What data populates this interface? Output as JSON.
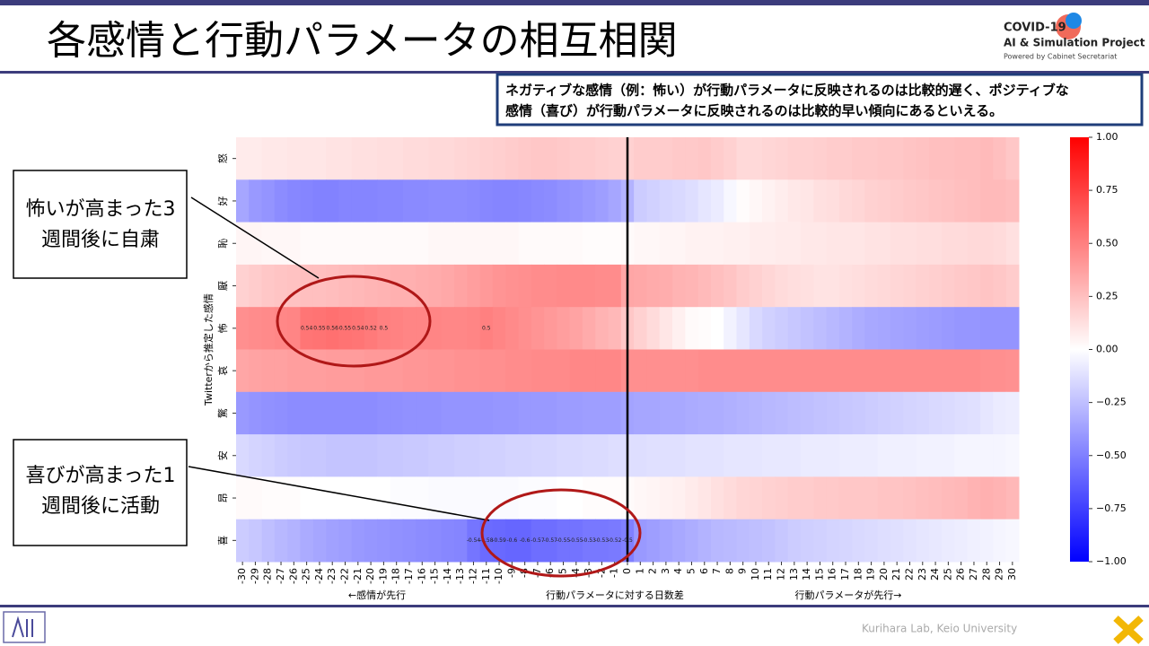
{
  "slide": {
    "title": "各感情と行動パラメータの相互相関",
    "logo": {
      "line1": "COVID-19",
      "line2": "AI & Simulation Project",
      "line3": "Powered by Cabinet Secretariat"
    },
    "note": [
      "ネガティブな感情（例：怖い）が行動パラメータに反映されるのは比較的遅く、ポジティブな",
      "感情（喜び）が行動パラメータに反映されるのは比較的早い傾向にあるといえる。"
    ],
    "callouts": [
      {
        "lines": [
          "怖いが高まった3",
          "週間後に自粛"
        ]
      },
      {
        "lines": [
          "喜びが高まった1",
          "週間後に活動"
        ]
      }
    ],
    "footer": "Kurihara Lab, Keio University"
  },
  "chart_data": {
    "type": "heatmap",
    "colormap": "bwr",
    "ylabel": "Twitterから推定した感情",
    "xlabel": "行動パラメータに対する日数差",
    "xlabel_left": "←感情が先行",
    "xlabel_right": "行動パラメータが先行→",
    "categories": [
      "怒",
      "好",
      "恥",
      "厭",
      "怖",
      "哀",
      "驚",
      "安",
      "昂",
      "喜"
    ],
    "x": [
      -30,
      -29,
      -28,
      -27,
      -26,
      -25,
      -24,
      -23,
      -22,
      -21,
      -20,
      -19,
      -18,
      -17,
      -16,
      -15,
      -14,
      -13,
      -12,
      -11,
      -10,
      -9,
      -8,
      -7,
      -6,
      -5,
      -4,
      -3,
      -2,
      -1,
      0,
      1,
      2,
      3,
      4,
      5,
      6,
      7,
      8,
      9,
      10,
      11,
      12,
      13,
      14,
      15,
      16,
      17,
      18,
      19,
      20,
      21,
      22,
      23,
      24,
      25,
      26,
      27,
      28,
      29,
      30
    ],
    "values": [
      [
        0.08,
        0.08,
        0.09,
        0.09,
        0.1,
        0.1,
        0.1,
        0.11,
        0.11,
        0.12,
        0.12,
        0.13,
        0.13,
        0.14,
        0.14,
        0.15,
        0.15,
        0.16,
        0.17,
        0.18,
        0.19,
        0.2,
        0.21,
        0.22,
        0.22,
        0.21,
        0.2,
        0.2,
        0.19,
        0.18,
        0.18,
        0.2,
        0.2,
        0.2,
        0.21,
        0.21,
        0.22,
        0.2,
        0.18,
        0.15,
        0.15,
        0.16,
        0.17,
        0.18,
        0.18,
        0.19,
        0.2,
        0.2,
        0.21,
        0.21,
        0.22,
        0.22,
        0.23,
        0.24,
        0.25,
        0.25,
        0.26,
        0.26,
        0.27,
        0.25,
        0.22
      ],
      [
        -0.35,
        -0.4,
        -0.42,
        -0.45,
        -0.47,
        -0.48,
        -0.49,
        -0.49,
        -0.48,
        -0.48,
        -0.48,
        -0.47,
        -0.47,
        -0.46,
        -0.46,
        -0.45,
        -0.45,
        -0.45,
        -0.46,
        -0.47,
        -0.48,
        -0.48,
        -0.47,
        -0.46,
        -0.45,
        -0.43,
        -0.42,
        -0.4,
        -0.38,
        -0.35,
        -0.3,
        -0.2,
        -0.18,
        -0.16,
        -0.15,
        -0.13,
        -0.1,
        -0.08,
        -0.03,
        0.01,
        0.03,
        0.05,
        0.07,
        0.09,
        0.1,
        0.12,
        0.13,
        0.15,
        0.16,
        0.18,
        0.19,
        0.2,
        0.21,
        0.22,
        0.23,
        0.24,
        0.25,
        0.26,
        0.27,
        0.27,
        0.26
      ],
      [
        0.04,
        0.04,
        0.03,
        0.03,
        0.03,
        0.02,
        0.02,
        0.02,
        0.02,
        0.02,
        0.02,
        0.02,
        0.02,
        0.02,
        0.02,
        0.03,
        0.03,
        0.03,
        0.03,
        0.03,
        0.03,
        0.03,
        0.02,
        0.02,
        0.02,
        0.02,
        0.02,
        0.01,
        0.01,
        0.01,
        0.02,
        0.03,
        0.03,
        0.04,
        0.04,
        0.05,
        0.05,
        0.05,
        0.06,
        0.06,
        0.07,
        0.07,
        0.08,
        0.08,
        0.09,
        0.09,
        0.1,
        0.1,
        0.1,
        0.11,
        0.11,
        0.12,
        0.12,
        0.13,
        0.13,
        0.14,
        0.14,
        0.15,
        0.15,
        0.14,
        0.12
      ],
      [
        0.18,
        0.2,
        0.22,
        0.23,
        0.24,
        0.25,
        0.25,
        0.26,
        0.27,
        0.28,
        0.29,
        0.3,
        0.31,
        0.31,
        0.32,
        0.33,
        0.34,
        0.36,
        0.38,
        0.4,
        0.42,
        0.43,
        0.44,
        0.45,
        0.45,
        0.46,
        0.46,
        0.46,
        0.45,
        0.45,
        0.35,
        0.34,
        0.33,
        0.32,
        0.3,
        0.29,
        0.27,
        0.25,
        0.23,
        0.2,
        0.18,
        0.16,
        0.14,
        0.13,
        0.12,
        0.11,
        0.11,
        0.12,
        0.13,
        0.14,
        0.15,
        0.16,
        0.17,
        0.18,
        0.19,
        0.2,
        0.21,
        0.22,
        0.23,
        0.22,
        0.2
      ],
      [
        0.44,
        0.45,
        0.46,
        0.47,
        0.48,
        0.54,
        0.55,
        0.56,
        0.55,
        0.54,
        0.52,
        0.5,
        0.49,
        0.48,
        0.48,
        0.48,
        0.47,
        0.47,
        0.48,
        0.5,
        0.48,
        0.46,
        0.44,
        0.42,
        0.4,
        0.38,
        0.36,
        0.33,
        0.3,
        0.28,
        0.22,
        0.18,
        0.14,
        0.1,
        0.06,
        0.02,
        0.01,
        0,
        -0.05,
        -0.1,
        -0.15,
        -0.18,
        -0.2,
        -0.22,
        -0.24,
        -0.26,
        -0.28,
        -0.3,
        -0.32,
        -0.34,
        -0.35,
        -0.36,
        -0.37,
        -0.38,
        -0.39,
        -0.4,
        -0.41,
        -0.41,
        -0.42,
        -0.42,
        -0.42
      ],
      [
        0.35,
        0.36,
        0.37,
        0.37,
        0.38,
        0.38,
        0.38,
        0.39,
        0.39,
        0.39,
        0.4,
        0.4,
        0.4,
        0.41,
        0.41,
        0.42,
        0.42,
        0.43,
        0.43,
        0.44,
        0.44,
        0.45,
        0.45,
        0.46,
        0.46,
        0.46,
        0.47,
        0.47,
        0.47,
        0.47,
        0.44,
        0.44,
        0.44,
        0.44,
        0.44,
        0.44,
        0.45,
        0.45,
        0.45,
        0.45,
        0.45,
        0.45,
        0.45,
        0.45,
        0.45,
        0.45,
        0.45,
        0.45,
        0.45,
        0.45,
        0.45,
        0.45,
        0.45,
        0.45,
        0.45,
        0.45,
        0.45,
        0.45,
        0.44,
        0.44,
        0.43
      ],
      [
        -0.4,
        -0.42,
        -0.43,
        -0.44,
        -0.45,
        -0.45,
        -0.45,
        -0.45,
        -0.45,
        -0.45,
        -0.45,
        -0.44,
        -0.44,
        -0.43,
        -0.43,
        -0.43,
        -0.42,
        -0.42,
        -0.42,
        -0.42,
        -0.41,
        -0.41,
        -0.4,
        -0.4,
        -0.4,
        -0.39,
        -0.39,
        -0.38,
        -0.38,
        -0.38,
        -0.36,
        -0.35,
        -0.35,
        -0.34,
        -0.34,
        -0.33,
        -0.32,
        -0.32,
        -0.31,
        -0.3,
        -0.29,
        -0.28,
        -0.27,
        -0.26,
        -0.25,
        -0.24,
        -0.23,
        -0.22,
        -0.21,
        -0.2,
        -0.19,
        -0.18,
        -0.17,
        -0.16,
        -0.15,
        -0.14,
        -0.13,
        -0.12,
        -0.1,
        -0.08,
        -0.07
      ],
      [
        -0.15,
        -0.17,
        -0.18,
        -0.2,
        -0.21,
        -0.22,
        -0.22,
        -0.23,
        -0.23,
        -0.23,
        -0.23,
        -0.22,
        -0.22,
        -0.21,
        -0.21,
        -0.2,
        -0.2,
        -0.19,
        -0.19,
        -0.18,
        -0.18,
        -0.17,
        -0.17,
        -0.16,
        -0.16,
        -0.15,
        -0.15,
        -0.14,
        -0.14,
        -0.13,
        -0.13,
        -0.13,
        -0.12,
        -0.12,
        -0.12,
        -0.11,
        -0.11,
        -0.11,
        -0.1,
        -0.1,
        -0.1,
        -0.09,
        -0.09,
        -0.09,
        -0.08,
        -0.08,
        -0.08,
        -0.07,
        -0.07,
        -0.07,
        -0.06,
        -0.06,
        -0.06,
        -0.05,
        -0.05,
        -0.05,
        -0.04,
        -0.04,
        -0.04,
        -0.04,
        -0.03
      ],
      [
        0.02,
        0.02,
        0.01,
        0.01,
        0.01,
        0,
        0,
        0,
        0,
        0,
        0,
        0,
        -0.01,
        -0.01,
        -0.01,
        -0.02,
        -0.02,
        -0.02,
        -0.02,
        -0.02,
        -0.02,
        -0.02,
        -0.01,
        -0.01,
        -0.01,
        0,
        0,
        0.01,
        0.01,
        0.01,
        0.02,
        0.03,
        0.04,
        0.05,
        0.06,
        0.08,
        0.1,
        0.12,
        0.14,
        0.16,
        0.17,
        0.18,
        0.19,
        0.2,
        0.2,
        0.21,
        0.21,
        0.22,
        0.22,
        0.22,
        0.23,
        0.23,
        0.24,
        0.25,
        0.26,
        0.27,
        0.28,
        0.3,
        0.31,
        0.3,
        0.28
      ],
      [
        -0.2,
        -0.22,
        -0.25,
        -0.28,
        -0.3,
        -0.33,
        -0.35,
        -0.37,
        -0.38,
        -0.4,
        -0.41,
        -0.42,
        -0.43,
        -0.44,
        -0.45,
        -0.46,
        -0.47,
        -0.48,
        -0.54,
        -0.58,
        -0.59,
        -0.6,
        -0.6,
        -0.57,
        -0.57,
        -0.55,
        -0.55,
        -0.53,
        -0.53,
        -0.52,
        -0.5,
        -0.4,
        -0.38,
        -0.36,
        -0.34,
        -0.32,
        -0.3,
        -0.28,
        -0.27,
        -0.26,
        -0.25,
        -0.24,
        -0.22,
        -0.2,
        -0.19,
        -0.18,
        -0.17,
        -0.16,
        -0.15,
        -0.14,
        -0.13,
        -0.12,
        -0.11,
        -0.1,
        -0.09,
        -0.08,
        -0.07,
        -0.06,
        -0.05,
        -0.04,
        -0.03
      ]
    ],
    "value_labels": [
      null,
      null,
      null,
      null,
      [
        null,
        null,
        null,
        null,
        null,
        "0.54",
        "0.55",
        "0.56",
        "0.55",
        "0.54",
        "0.52",
        "0.5",
        null,
        null,
        null,
        null,
        null,
        null,
        null,
        "0.5",
        null,
        null,
        null,
        null,
        null,
        null,
        null,
        null,
        null,
        null,
        null,
        null,
        null,
        null,
        null,
        null,
        null,
        null,
        null,
        null,
        null,
        null,
        null,
        null,
        null,
        null,
        null,
        null,
        null,
        null,
        null,
        null,
        null,
        null,
        null,
        null,
        null,
        null,
        null,
        null,
        null
      ],
      null,
      null,
      null,
      null,
      [
        null,
        null,
        null,
        null,
        null,
        null,
        null,
        null,
        null,
        null,
        null,
        null,
        null,
        null,
        null,
        null,
        null,
        null,
        "-0.54",
        "-0.58",
        "-0.59",
        "-0.6",
        "-0.6",
        "-0.57",
        "-0.57",
        "-0.55",
        "-0.55",
        "-0.53",
        "-0.53",
        "-0.52",
        "-0.5",
        null,
        null,
        null,
        null,
        null,
        null,
        null,
        null,
        null,
        null,
        null,
        null,
        null,
        null,
        null,
        null,
        null,
        null,
        null,
        null,
        null,
        null,
        null,
        null,
        null,
        null,
        null,
        null,
        null,
        null
      ]
    ],
    "clim": [
      -1,
      1
    ],
    "cticks": [
      {
        "value": 1,
        "label": "1.00"
      },
      {
        "value": 0.75,
        "label": "0.75"
      },
      {
        "value": 0.5,
        "label": "0.50"
      },
      {
        "value": 0.25,
        "label": "0.25"
      },
      {
        "value": 0,
        "label": "0.00"
      },
      {
        "value": -0.25,
        "label": "−0.25"
      },
      {
        "value": -0.5,
        "label": "−0.50"
      },
      {
        "value": -0.75,
        "label": "−0.75"
      },
      {
        "value": -1,
        "label": "−1.00"
      }
    ]
  }
}
